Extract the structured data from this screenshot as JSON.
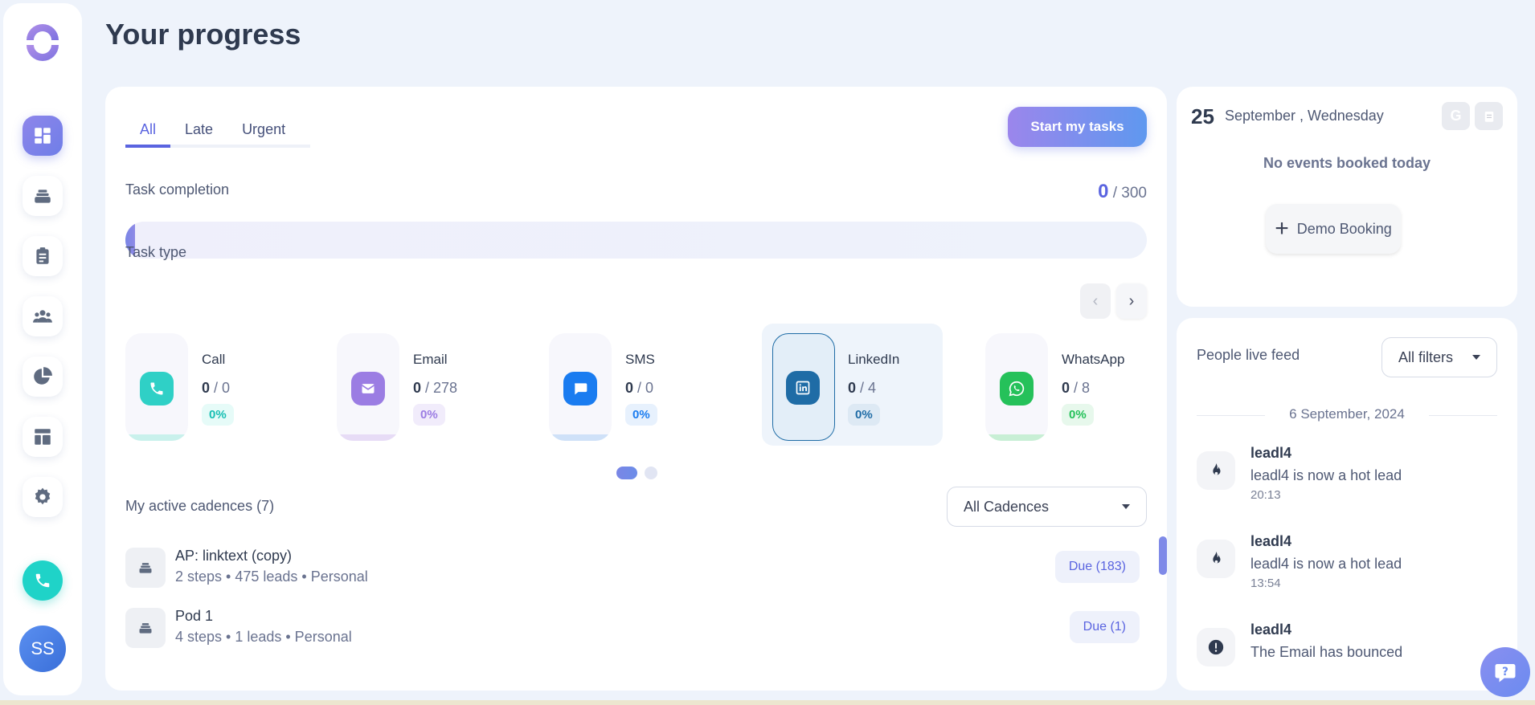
{
  "page": {
    "title": "Your progress"
  },
  "sidebar": {
    "items": [
      {
        "name": "dashboard-icon",
        "active": true
      },
      {
        "name": "cadences-icon"
      },
      {
        "name": "tasks-clipboard-icon"
      },
      {
        "name": "people-icon"
      },
      {
        "name": "reports-pie-icon"
      },
      {
        "name": "templates-layout-icon"
      },
      {
        "name": "settings-gear-icon"
      }
    ],
    "call_icon": "phone-icon",
    "avatar_initials": "SS"
  },
  "tabs": [
    {
      "label": "All",
      "active": true
    },
    {
      "label": "Late"
    },
    {
      "label": "Urgent"
    }
  ],
  "start_button": "Start my tasks",
  "completion": {
    "label": "Task completion",
    "done": "0",
    "total": "/ 300",
    "progress": 0.0
  },
  "task_type": {
    "label": "Task type",
    "cards": [
      {
        "name": "Call",
        "done": "0",
        "total": "/ 0",
        "pct": "0%",
        "color": "#2fd0c6",
        "pct_bg": "#e6fbf8",
        "pct_color": "#17bfb3",
        "stripe": "#c9f1ec"
      },
      {
        "name": "Email",
        "done": "0",
        "total": "/ 278",
        "pct": "0%",
        "color": "#9b7de3",
        "pct_bg": "#f1ecfb",
        "pct_color": "#9b7de3",
        "stripe": "#e7dcf6"
      },
      {
        "name": "SMS",
        "done": "0",
        "total": "/ 0",
        "pct": "0%",
        "color": "#1a7cf0",
        "pct_bg": "#e7f1fd",
        "pct_color": "#1a7cf0",
        "stripe": "#cfe1f8"
      },
      {
        "name": "LinkedIn",
        "done": "0",
        "total": "/ 4",
        "pct": "0%",
        "color": "#1f6ca6",
        "pct_bg": "#dde9f4",
        "pct_color": "#1f6ca6",
        "stripe": "#1f6ca6",
        "selected": true
      },
      {
        "name": "WhatsApp",
        "done": "0",
        "total": "/ 8",
        "pct": "0%",
        "color": "#25c15a",
        "pct_bg": "#e7f8ec",
        "pct_color": "#25c15a",
        "stripe": "#c8efd5"
      }
    ]
  },
  "cadences": {
    "label": "My active cadences (7)",
    "filter": "All Cadences",
    "rows": [
      {
        "name": "AP: linktext (copy)",
        "meta": "2 steps • 475 leads • Personal",
        "due": "Due (183)"
      },
      {
        "name": "Pod 1",
        "meta": "4 steps • 1 leads • Personal",
        "due": "Due (1)"
      }
    ]
  },
  "calendar": {
    "day": "25",
    "date_text": "September , Wednesday",
    "no_events": "No events booked today",
    "demo_button": "Demo Booking"
  },
  "feed": {
    "title": "People live feed",
    "filter": "All filters",
    "date": "6 September, 2024",
    "items": [
      {
        "name": "leadl4",
        "text": "leadl4 is now a hot lead",
        "time": "20:13",
        "icon": "fire-icon"
      },
      {
        "name": "leadl4",
        "text": "leadl4 is now a hot lead",
        "time": "13:54",
        "icon": "fire-icon"
      },
      {
        "name": "leadl4",
        "text": "The Email has bounced",
        "time": "",
        "icon": "alert-icon"
      }
    ]
  }
}
